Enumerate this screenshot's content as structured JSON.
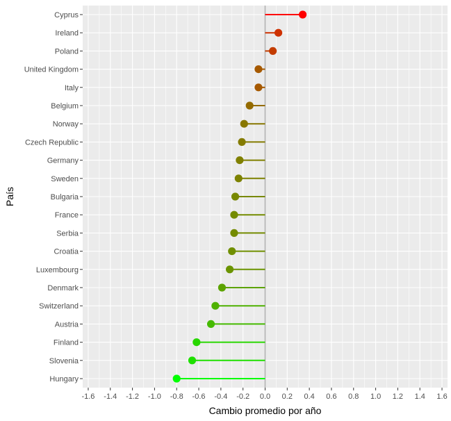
{
  "chart_data": {
    "type": "lollipop",
    "xlabel": "Cambio promedio por año",
    "ylabel": "País",
    "xlim": [
      -1.65,
      1.65
    ],
    "x_ticks": [
      -1.6,
      -1.4,
      -1.2,
      -1.0,
      -0.8,
      -0.6,
      -0.4,
      -0.2,
      0.0,
      0.2,
      0.4,
      0.6,
      0.8,
      1.0,
      1.2,
      1.4,
      1.6
    ],
    "x_tick_labels": [
      "-1.6",
      "-1.4",
      "-1.2",
      "-1.0",
      "-0.8",
      "-0.6",
      "-0.4",
      "-0.2",
      "0.0",
      "0.2",
      "0.4",
      "0.6",
      "0.8",
      "1.0",
      "1.2",
      "1.4",
      "1.6"
    ],
    "reference_line_x": 0,
    "grid": true,
    "panel_background": "#ebebeb",
    "grid_color": "#ffffff",
    "reference_line_color": "#b3b3b3",
    "color_gradient": {
      "low": "#00ff00",
      "high": "#ff0000"
    },
    "categories": [
      "Cyprus",
      "Ireland",
      "Poland",
      "United Kingdom",
      "Italy",
      "Belgium",
      "Norway",
      "Czech Republic",
      "Germany",
      "Sweden",
      "Bulgaria",
      "France",
      "Serbia",
      "Croatia",
      "Luxembourg",
      "Denmark",
      "Switzerland",
      "Austria",
      "Finland",
      "Slovenia",
      "Hungary"
    ],
    "values": [
      0.34,
      0.12,
      0.07,
      -0.06,
      -0.06,
      -0.14,
      -0.19,
      -0.21,
      -0.23,
      -0.24,
      -0.27,
      -0.28,
      -0.28,
      -0.3,
      -0.32,
      -0.39,
      -0.45,
      -0.49,
      -0.62,
      -0.66,
      -0.8
    ]
  }
}
